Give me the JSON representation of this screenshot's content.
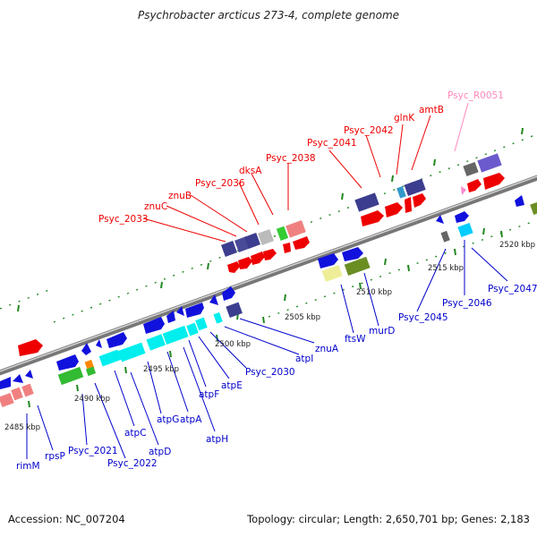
{
  "title": "Psychrobacter arcticus 273-4, complete genome",
  "accession": "Accession: NC_007204",
  "summary": "Topology: circular; Length: 2,650,701 bp; Genes: 2,183",
  "colors": {
    "forward_label": "#ee0000",
    "reverse_label": "#0000cc",
    "rna_label": "#ff88bb",
    "tick": "#228822",
    "backbone": "#888888"
  },
  "ruler": [
    "2485 kbp",
    "2490 kbp",
    "2495 kbp",
    "2500 kbp",
    "2505 kbp",
    "2510 kbp",
    "2515 kbp",
    "2520 kbp"
  ],
  "forward_labels": [
    "Psyc_2033",
    "znuC",
    "znuB",
    "Psyc_2036",
    "dksA",
    "Psyc_2038",
    "Psyc_2041",
    "Psyc_2042",
    "glnK",
    "amtB"
  ],
  "rna_labels": [
    "Psyc_R0051"
  ],
  "reverse_labels": [
    "rimM",
    "rpsP",
    "Psyc_2021",
    "Psyc_2022",
    "atpC",
    "atpD",
    "atpG",
    "atpA",
    "atpH",
    "atpF",
    "atpE",
    "Psyc_2030",
    "atpI",
    "znuA",
    "ftsW",
    "murD",
    "Psyc_2045",
    "Psyc_2046",
    "Psyc_2047"
  ]
}
